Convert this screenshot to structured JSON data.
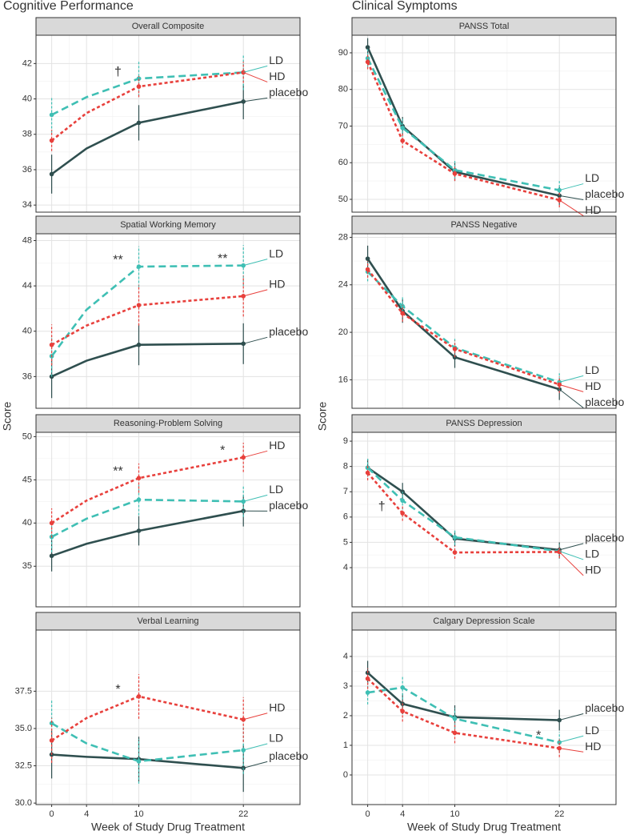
{
  "columns": [
    "Cognitive Performance",
    "Clinical Symptoms"
  ],
  "y_label": "Score",
  "chart_data": [
    {
      "type": "line",
      "title": "Overall Composite",
      "x": [
        0,
        4,
        10,
        22
      ],
      "xlim": [
        -1.8,
        28.5
      ],
      "xticks": [
        0,
        4,
        10,
        22
      ],
      "ylim": [
        33.6,
        43.6
      ],
      "yticks": [
        34,
        36,
        38,
        40,
        42
      ],
      "grid": true,
      "series": [
        {
          "name": "placebo",
          "color": "#2f4f4f",
          "dash": "solid",
          "values": [
            35.75,
            37.2,
            38.65,
            39.85
          ],
          "errors": [
            1.1,
            null,
            1.0,
            1.0
          ]
        },
        {
          "name": "LD",
          "color": "#3fbfb4",
          "dash": "longdash",
          "values": [
            39.1,
            40.1,
            41.15,
            41.5
          ],
          "errors": [
            1.0,
            null,
            1.0,
            1.0
          ]
        },
        {
          "name": "HD",
          "color": "#e8403c",
          "dash": "dashed",
          "values": [
            37.65,
            39.2,
            40.7,
            41.5
          ],
          "errors": [
            0.6,
            null,
            0.6,
            0.6
          ]
        }
      ],
      "annotations": [
        {
          "text": "†",
          "series": 1,
          "index": 2
        }
      ]
    },
    {
      "type": "line",
      "title": "Spatial Working Memory",
      "x": [
        0,
        4,
        10,
        22
      ],
      "xlim": [
        -1.8,
        28.5
      ],
      "xticks": [
        0,
        4,
        10,
        22
      ],
      "ylim": [
        33.2,
        48.6
      ],
      "yticks": [
        36,
        40,
        44,
        48
      ],
      "grid": true,
      "series": [
        {
          "name": "placebo",
          "color": "#2f4f4f",
          "dash": "solid",
          "values": [
            36.0,
            37.4,
            38.8,
            38.9
          ],
          "errors": [
            1.9,
            null,
            1.8,
            1.8
          ]
        },
        {
          "name": "LD",
          "color": "#3fbfb4",
          "dash": "longdash",
          "values": [
            37.8,
            41.9,
            45.7,
            45.8
          ],
          "errors": [
            1.8,
            null,
            1.8,
            1.8
          ]
        },
        {
          "name": "HD",
          "color": "#e8403c",
          "dash": "dashed",
          "values": [
            38.8,
            40.5,
            42.3,
            43.1
          ],
          "errors": [
            1.8,
            null,
            1.8,
            1.8
          ]
        }
      ],
      "annotations": [
        {
          "text": "**",
          "series": 1,
          "index": 2
        },
        {
          "text": "**",
          "series": 1,
          "index": 3
        }
      ]
    },
    {
      "type": "line",
      "title": "Reasoning-Problem Solving",
      "x": [
        0,
        4,
        10,
        22
      ],
      "xlim": [
        -1.8,
        28.5
      ],
      "xticks": [
        0,
        4,
        10,
        22
      ],
      "ylim": [
        30.3,
        50.5
      ],
      "yticks": [
        35,
        40,
        45,
        50
      ],
      "grid": true,
      "series": [
        {
          "name": "placebo",
          "color": "#2f4f4f",
          "dash": "solid",
          "values": [
            36.2,
            37.6,
            39.1,
            41.4
          ],
          "errors": [
            1.8,
            null,
            1.7,
            1.8
          ]
        },
        {
          "name": "LD",
          "color": "#3fbfb4",
          "dash": "longdash",
          "values": [
            38.4,
            40.5,
            42.7,
            42.5
          ],
          "errors": [
            1.8,
            null,
            1.8,
            1.8
          ]
        },
        {
          "name": "HD",
          "color": "#e8403c",
          "dash": "dashed",
          "values": [
            40.0,
            42.6,
            45.2,
            47.6
          ],
          "errors": [
            1.7,
            null,
            1.7,
            1.7
          ]
        }
      ],
      "annotations": [
        {
          "text": "**",
          "series": 2,
          "index": 2
        },
        {
          "text": "*",
          "series": 2,
          "index": 3
        }
      ]
    },
    {
      "type": "line",
      "title": "Verbal Learning",
      "x": [
        0,
        4,
        10,
        22
      ],
      "xlim": [
        -1.8,
        28.5
      ],
      "xticks": [
        0,
        4,
        10,
        22
      ],
      "ylim": [
        29.9,
        41.6
      ],
      "yticks": [
        {
          "value": 30,
          "label": "30.0"
        },
        32.5,
        {
          "value": 35,
          "label": "35.0"
        },
        37.5
      ],
      "grid": true,
      "x_label": "Week of Study Drug Treatment",
      "series": [
        {
          "name": "placebo",
          "color": "#2f4f4f",
          "dash": "solid",
          "values": [
            33.25,
            33.1,
            32.95,
            32.35
          ],
          "errors": [
            1.6,
            null,
            1.5,
            1.6
          ]
        },
        {
          "name": "LD",
          "color": "#3fbfb4",
          "dash": "longdash",
          "values": [
            35.35,
            34.0,
            32.8,
            33.55
          ],
          "errors": [
            1.6,
            null,
            1.5,
            1.6
          ]
        },
        {
          "name": "HD",
          "color": "#e8403c",
          "dash": "dashed",
          "values": [
            34.2,
            35.7,
            37.15,
            35.6
          ],
          "errors": [
            1.5,
            null,
            1.5,
            1.5
          ]
        }
      ],
      "annotations": [
        {
          "text": "*",
          "series": 2,
          "index": 2
        }
      ]
    },
    {
      "type": "line",
      "title": "PANSS Total",
      "x": [
        0,
        4,
        10,
        22
      ],
      "xlim": [
        -1.8,
        28.5
      ],
      "xticks": [
        0,
        4,
        10,
        22
      ],
      "ylim": [
        46.5,
        94.8
      ],
      "yticks": [
        50,
        60,
        70,
        80,
        90
      ],
      "grid": true,
      "series": [
        {
          "name": "placebo",
          "color": "#2f4f4f",
          "dash": "solid",
          "values": [
            91.5,
            70,
            57.5,
            51
          ],
          "errors": [
            2.5,
            2.5,
            2.5,
            2.5
          ]
        },
        {
          "name": "LD",
          "color": "#3fbfb4",
          "dash": "longdash",
          "values": [
            88.5,
            69.5,
            58,
            52.5
          ],
          "errors": [
            2.5,
            2.5,
            2.5,
            2.5
          ]
        },
        {
          "name": "HD",
          "color": "#e8403c",
          "dash": "dashed",
          "values": [
            87.5,
            66,
            57,
            49.8
          ],
          "errors": [
            2,
            2,
            2,
            2
          ]
        }
      ],
      "annotations": []
    },
    {
      "type": "line",
      "title": "PANSS Negative",
      "x": [
        0,
        4,
        10,
        22
      ],
      "xlim": [
        -1.8,
        28.5
      ],
      "xticks": [
        0,
        4,
        10,
        22
      ],
      "ylim": [
        13.6,
        28.3
      ],
      "yticks": [
        16,
        20,
        24,
        28
      ],
      "grid": true,
      "series": [
        {
          "name": "placebo",
          "color": "#2f4f4f",
          "dash": "solid",
          "values": [
            26.2,
            21.8,
            17.9,
            15.2
          ],
          "errors": [
            1.1,
            1.0,
            0.9,
            0.9
          ]
        },
        {
          "name": "LD",
          "color": "#3fbfb4",
          "dash": "longdash",
          "values": [
            25.1,
            22.2,
            18.7,
            15.8
          ],
          "errors": [
            0.8,
            0.8,
            0.8,
            0.8
          ]
        },
        {
          "name": "HD",
          "color": "#e8403c",
          "dash": "dashed",
          "values": [
            25.3,
            21.6,
            18.6,
            15.6
          ],
          "errors": [
            0.7,
            0.7,
            0.7,
            0.7
          ]
        }
      ],
      "annotations": []
    },
    {
      "type": "line",
      "title": "PANSS Depression",
      "x": [
        0,
        4,
        10,
        22
      ],
      "xlim": [
        -1.8,
        28.5
      ],
      "xticks": [
        0,
        4,
        10,
        22
      ],
      "ylim": [
        2.45,
        9.35
      ],
      "yticks": [
        4,
        5,
        6,
        7,
        8,
        9
      ],
      "grid": true,
      "series": [
        {
          "name": "placebo",
          "color": "#2f4f4f",
          "dash": "solid",
          "values": [
            7.95,
            7.0,
            5.15,
            4.7
          ],
          "errors": [
            0.35,
            0.35,
            0.3,
            0.3
          ]
        },
        {
          "name": "LD",
          "color": "#3fbfb4",
          "dash": "longdash",
          "values": [
            7.95,
            6.65,
            5.2,
            4.65
          ],
          "errors": [
            0.35,
            0.35,
            0.3,
            0.3
          ]
        },
        {
          "name": "HD",
          "color": "#e8403c",
          "dash": "dashed",
          "values": [
            7.75,
            6.15,
            4.6,
            4.62
          ],
          "errors": [
            0.3,
            0.3,
            0.25,
            0.25
          ]
        }
      ],
      "annotations": [
        {
          "text": "†",
          "series": 2,
          "index": 1
        }
      ]
    },
    {
      "type": "line",
      "title": "Calgary Depression Scale",
      "x": [
        0,
        4,
        10,
        22
      ],
      "xlim": [
        -1.8,
        28.5
      ],
      "xticks": [
        0,
        4,
        10,
        22
      ],
      "ylim": [
        -1.0,
        4.89
      ],
      "yticks": [
        0,
        1,
        2,
        3,
        4
      ],
      "grid": true,
      "x_label": "Week of Study Drug Treatment",
      "series": [
        {
          "name": "placebo",
          "color": "#2f4f4f",
          "dash": "solid",
          "values": [
            3.45,
            2.4,
            1.95,
            1.85
          ],
          "errors": [
            0.4,
            0.35,
            0.4,
            0.35
          ]
        },
        {
          "name": "LD",
          "color": "#3fbfb4",
          "dash": "longdash",
          "values": [
            2.78,
            2.95,
            1.9,
            1.1
          ],
          "errors": [
            0.4,
            0.4,
            0.35,
            0.35
          ]
        },
        {
          "name": "HD",
          "color": "#e8403c",
          "dash": "dashed",
          "values": [
            3.25,
            2.15,
            1.42,
            0.9
          ],
          "errors": [
            0.35,
            0.35,
            0.35,
            0.3
          ]
        }
      ],
      "annotations": [
        {
          "text": "*",
          "series": 1,
          "index": 3
        }
      ]
    }
  ]
}
